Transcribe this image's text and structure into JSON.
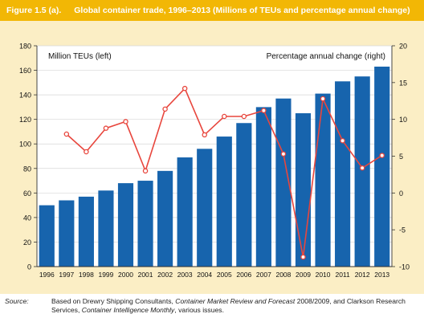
{
  "header": {
    "figure_number": "Figure 1.5 (a).",
    "figure_title": "Global container trade, 1996–2013 (Millions of TEUs and percentage annual change)"
  },
  "colors": {
    "header_bg": "#f2b705",
    "plot_bg": "#fbeec5",
    "bar_color": "#1764ad",
    "line_color": "#e8463d"
  },
  "chart_data": {
    "type": "bar",
    "categories": [
      "1996",
      "1997",
      "1998",
      "1999",
      "2000",
      "2001",
      "2002",
      "2003",
      "2004",
      "2005",
      "2006",
      "2007",
      "2008",
      "2009",
      "2010",
      "2011",
      "2012",
      "2013"
    ],
    "series": [
      {
        "name": "Million TEUs (left)",
        "type": "bar",
        "axis": "left",
        "values": [
          50,
          54,
          57,
          62,
          68,
          70,
          78,
          89,
          96,
          106,
          117,
          130,
          137,
          125,
          141,
          151,
          155,
          163
        ]
      },
      {
        "name": "Percentage annual change (right)",
        "type": "line",
        "axis": "right",
        "values": [
          null,
          8.0,
          5.6,
          8.8,
          9.7,
          3.0,
          11.4,
          14.2,
          7.9,
          10.4,
          10.4,
          11.2,
          5.3,
          -8.7,
          12.8,
          7.1,
          3.4,
          5.1
        ]
      }
    ],
    "y_left": {
      "min": 0,
      "max": 180,
      "ticks": [
        "0",
        "20",
        "40",
        "60",
        "80",
        "100",
        "120",
        "140",
        "160",
        "180"
      ]
    },
    "y_right": {
      "min": -10,
      "max": 20,
      "ticks": [
        "-10",
        "-5",
        "0",
        "5",
        "10",
        "15",
        "20"
      ]
    },
    "legend_left": "Million TEUs (left)",
    "legend_right": "Percentage annual change (right)",
    "grid": true
  },
  "source": {
    "label": "Source:",
    "text_1": "Based on Drewry Shipping Consultants, ",
    "italic_1": "Container Market Review and Forecast",
    "text_2": " 2008/2009, and Clarkson Research Services, ",
    "italic_2": "Container Intelligence Monthly",
    "text_3": ", various issues."
  }
}
